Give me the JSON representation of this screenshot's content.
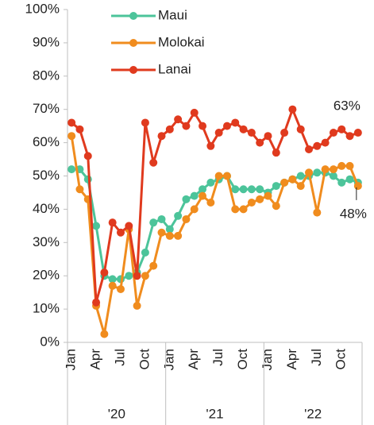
{
  "chart_data": {
    "type": "line",
    "categories": [
      "Jan",
      null,
      null,
      "Apr",
      null,
      null,
      "Jul",
      null,
      null,
      "Oct",
      null,
      null,
      "Jan",
      null,
      null,
      "Apr",
      null,
      null,
      "Jul",
      null,
      null,
      "Oct",
      null,
      null,
      "Jan",
      null,
      null,
      "Apr",
      null,
      null,
      "Jul",
      null,
      null,
      "Oct",
      null,
      null
    ],
    "groups": [
      "'20",
      "'21",
      "'22"
    ],
    "series": [
      {
        "name": "Maui",
        "color": "#4cc49a",
        "values": [
          52,
          52,
          49,
          35,
          20,
          19,
          19,
          20,
          21,
          27,
          36,
          37,
          34,
          38,
          43,
          44,
          46,
          48,
          49,
          50,
          46,
          46,
          46,
          46,
          45,
          47,
          48,
          49,
          50,
          50,
          51,
          51,
          50,
          48,
          49,
          48
        ]
      },
      {
        "name": "Molokai",
        "color": "#f08c1e",
        "values": [
          62,
          46,
          43,
          11,
          2.5,
          17,
          16,
          34,
          11,
          20,
          23,
          33,
          32,
          32,
          37,
          40,
          44,
          42,
          50,
          50,
          40,
          40,
          42,
          43,
          44,
          41,
          48,
          49,
          47,
          51,
          39,
          52,
          52,
          53,
          53,
          47
        ]
      },
      {
        "name": "Lanai",
        "color": "#e03a1e",
        "values": [
          66,
          64,
          56,
          12,
          21,
          36,
          33,
          35,
          20,
          66,
          54,
          62,
          64,
          67,
          65,
          69,
          65,
          59,
          63,
          65,
          66,
          64,
          63,
          60,
          62,
          57,
          63,
          70,
          64,
          58,
          59,
          60,
          63,
          64,
          62,
          63
        ]
      }
    ],
    "value_labels": [
      {
        "series": 2,
        "index": 35,
        "label": "63%"
      },
      {
        "series": 0,
        "index": 35,
        "label": "48%"
      }
    ],
    "ylim": [
      0,
      100
    ],
    "yticks": [
      {
        "value": 0,
        "label": "0%"
      },
      {
        "value": 10,
        "label": "10%"
      },
      {
        "value": 20,
        "label": "20%"
      },
      {
        "value": 30,
        "label": "30%"
      },
      {
        "value": 40,
        "label": "40%"
      },
      {
        "value": 50,
        "label": "50%"
      },
      {
        "value": 60,
        "label": "60%"
      },
      {
        "value": 70,
        "label": "70%"
      },
      {
        "value": 80,
        "label": "80%"
      },
      {
        "value": 90,
        "label": "90%"
      },
      {
        "value": 100,
        "label": "100%"
      }
    ]
  }
}
